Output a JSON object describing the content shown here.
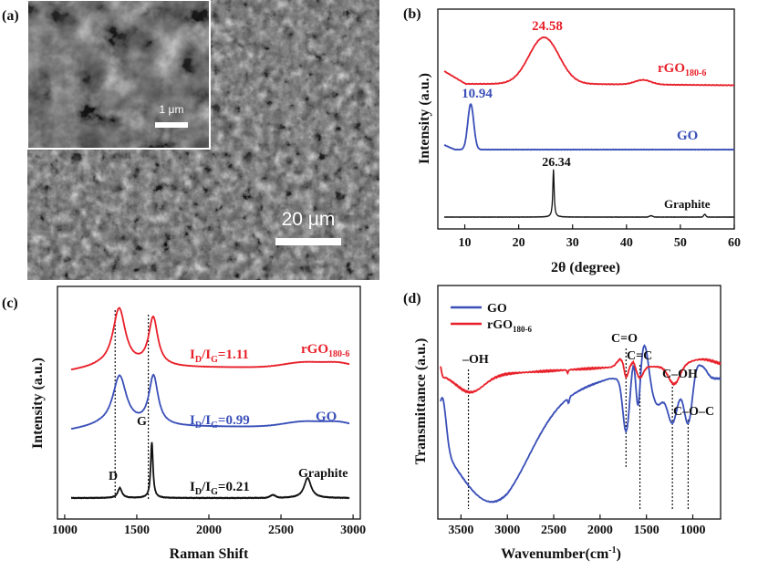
{
  "colors": {
    "red": "#e8202a",
    "blue": "#3a4fb8",
    "black": "#111111"
  },
  "chart_data": [
    {
      "panel": "(a)",
      "type": "image",
      "main_scale_label": "20 μm",
      "inset_scale_label": "1 μm"
    },
    {
      "panel": "(b)",
      "type": "line",
      "xlabel": "2θ (degree)",
      "ylabel": "Intensity (a.u.)",
      "xlim": [
        5,
        60
      ],
      "xticks": [
        10,
        20,
        30,
        40,
        50,
        60
      ],
      "series": [
        {
          "name": "rGO",
          "sub": "180-6",
          "color": "red",
          "peaks": [
            {
              "x": 24.58,
              "label": "24.58"
            },
            {
              "x": 43,
              "label": ""
            }
          ]
        },
        {
          "name": "GO",
          "color": "blue",
          "peaks": [
            {
              "x": 10.94,
              "label": "10.94"
            }
          ]
        },
        {
          "name": "Graphite",
          "color": "black",
          "peaks": [
            {
              "x": 26.34,
              "label": "26.34"
            },
            {
              "x": 54.5,
              "label": ""
            }
          ]
        }
      ]
    },
    {
      "panel": "(c)",
      "type": "line",
      "xlabel": "Raman Shift",
      "ylabel": "Intensity (a.u.)",
      "xlim": [
        950,
        3050
      ],
      "xticks": [
        1000,
        1500,
        2000,
        2500,
        3000
      ],
      "band_labels": {
        "D": "D",
        "G": "G"
      },
      "series": [
        {
          "name": "rGO",
          "sub": "180-6",
          "color": "red",
          "ratio": "1.11"
        },
        {
          "name": "GO",
          "color": "blue",
          "ratio": "0.99"
        },
        {
          "name": "Graphite",
          "color": "black",
          "ratio": "0.21"
        }
      ],
      "ratio_prefix": {
        "i1": "I",
        "s1": "D",
        "slash": "/I",
        "s2": "G",
        "eq": "="
      }
    },
    {
      "panel": "(d)",
      "type": "line",
      "xlabel": "Wavenumber(cm",
      "xlabel_sup": "-1",
      "xlabel_close": ")",
      "ylabel": "Transmittance (a.u.)",
      "xlim": [
        3750,
        700
      ],
      "xticks": [
        3500,
        3000,
        2500,
        2000,
        1500,
        1000
      ],
      "legend": [
        {
          "name": "GO",
          "color": "blue"
        },
        {
          "name": "rGO",
          "sub": "180-6",
          "color": "red"
        }
      ],
      "annotations": [
        {
          "label": "–OH",
          "x": 3420
        },
        {
          "label": "C=O",
          "x": 1720
        },
        {
          "label": "C=C",
          "x": 1570
        },
        {
          "label": "C–OH",
          "x": 1220
        },
        {
          "label": "C–O–C",
          "x": 1050
        }
      ]
    }
  ]
}
